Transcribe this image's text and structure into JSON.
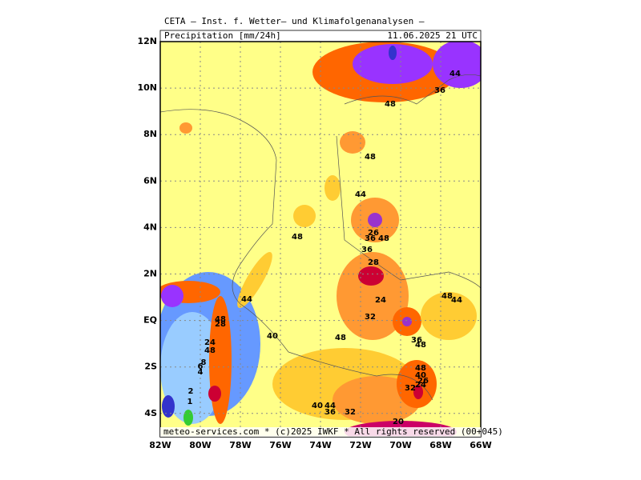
{
  "header": {
    "title": "CETA — Inst. f. Wetter— und Klimafolgenanalysen —",
    "product": "Precipitation [mm/24h]",
    "valid": "11.06.2025 21 UTC"
  },
  "axes": {
    "lat_labels": [
      "12N",
      "10N",
      "8N",
      "6N",
      "4N",
      "2N",
      "EQ",
      "2S",
      "4S"
    ],
    "lon_labels": [
      "82W",
      "80W",
      "78W",
      "76W",
      "74W",
      "72W",
      "70W",
      "68W",
      "66W"
    ]
  },
  "contour_labels": [
    "44",
    "36",
    "48",
    "48",
    "44",
    "48",
    "26",
    "36",
    "48",
    "36",
    "28",
    "44",
    "24",
    "48",
    "44",
    "48",
    "28",
    "32",
    "40",
    "48",
    "36",
    "48",
    "24",
    "48",
    "8",
    "6",
    "4",
    "48",
    "40",
    "26",
    "32",
    "24",
    "2",
    "1",
    "40",
    "44",
    "36",
    "32",
    "20"
  ],
  "footer": "meteo-services.com * (c)2025 IWKF * All rights reserved (00+045)"
}
